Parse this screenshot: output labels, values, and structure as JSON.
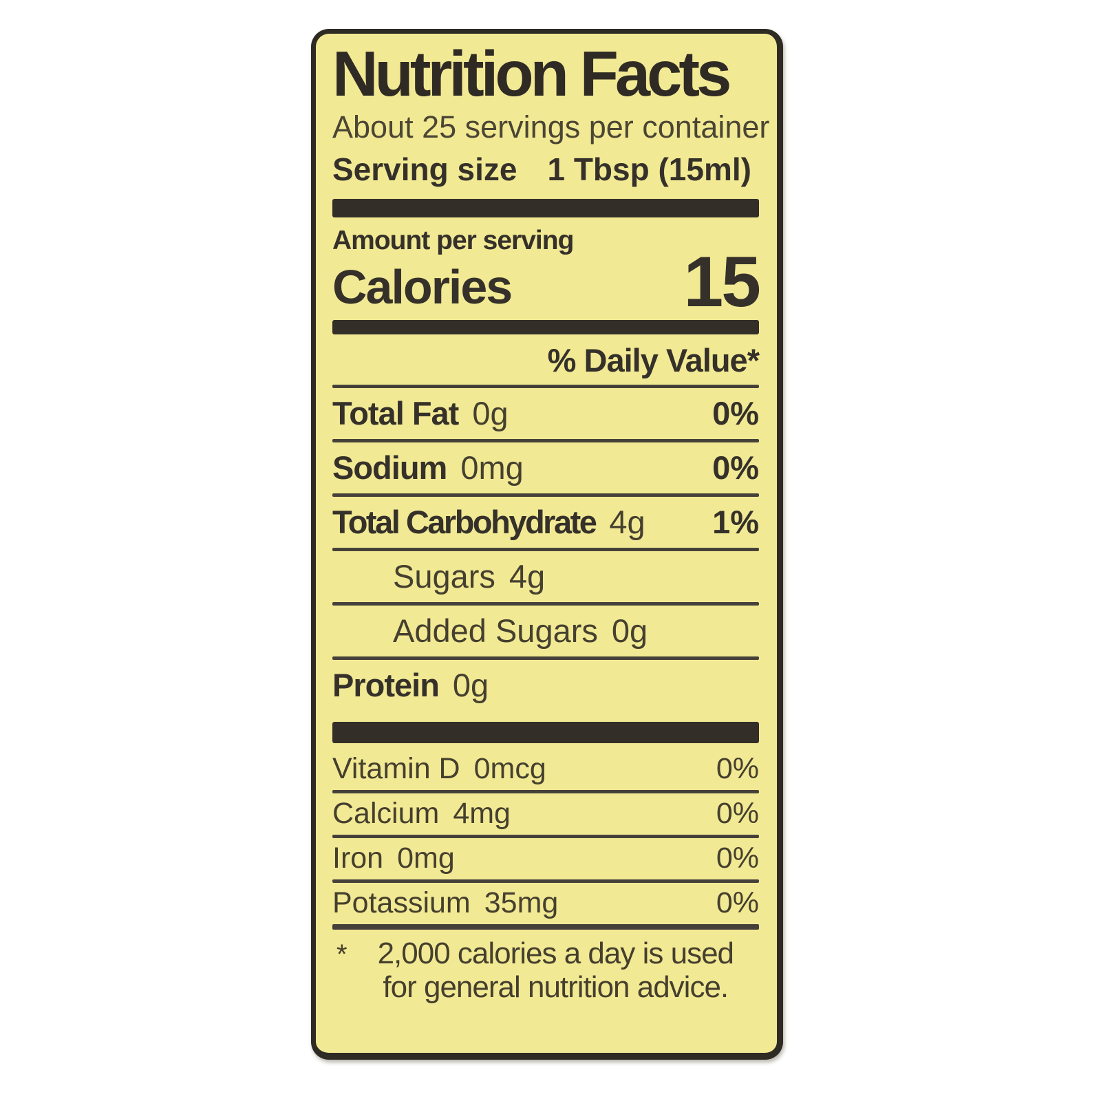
{
  "label": {
    "title": "Nutrition Facts",
    "servings_per_container": "About 25 servings per container",
    "serving_size_label": "Serving size",
    "serving_size_value": "1 Tbsp (15ml)",
    "amount_per_serving": "Amount per serving",
    "calories_label": "Calories",
    "calories_value": "15",
    "daily_value_header": "% Daily Value*",
    "nutrients": [
      {
        "name": "Total Fat",
        "amount": "0g",
        "dv": "0%"
      },
      {
        "name": "Sodium",
        "amount": "0mg",
        "dv": "0%"
      },
      {
        "name": "Total Carbohydrate",
        "amount": "4g",
        "dv": "1%"
      },
      {
        "name": "Sugars",
        "amount": "4g",
        "dv": ""
      },
      {
        "name": "Added Sugars",
        "amount": "0g",
        "dv": ""
      },
      {
        "name": "Protein",
        "amount": "0g",
        "dv": ""
      }
    ],
    "micronutrients": [
      {
        "name": "Vitamin D",
        "amount": "0mcg",
        "dv": "0%"
      },
      {
        "name": "Calcium",
        "amount": "4mg",
        "dv": "0%"
      },
      {
        "name": "Iron",
        "amount": "0mg",
        "dv": "0%"
      },
      {
        "name": "Potassium",
        "amount": "35mg",
        "dv": "0%"
      }
    ],
    "footnote_marker": "*",
    "footnote_line1": "2,000 calories a day is used",
    "footnote_line2": "for general nutrition advice."
  },
  "colors": {
    "label_bg": "#f2e994",
    "border": "#2e2b24",
    "bar": "#332f28",
    "rule": "#45413a",
    "ink": "#35312a"
  }
}
